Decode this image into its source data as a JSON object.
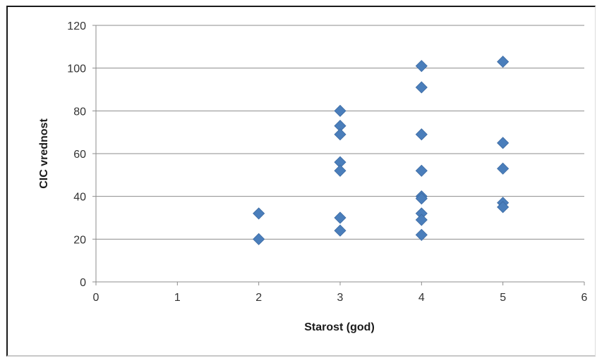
{
  "chart_data": {
    "type": "scatter",
    "title": "",
    "xlabel": "Starost (god)",
    "ylabel": "CIC vrednost",
    "xlim": [
      0,
      6
    ],
    "ylim": [
      0,
      120
    ],
    "x_ticks": [
      0,
      1,
      2,
      3,
      4,
      5,
      6
    ],
    "y_ticks": [
      0,
      20,
      40,
      60,
      80,
      100,
      120
    ],
    "grid": "horizontal",
    "legend": "none",
    "marker": "diamond",
    "marker_color": "#4a7ebb",
    "points": [
      {
        "x": 2,
        "y": 32
      },
      {
        "x": 2,
        "y": 20
      },
      {
        "x": 3,
        "y": 80
      },
      {
        "x": 3,
        "y": 73
      },
      {
        "x": 3,
        "y": 69
      },
      {
        "x": 3,
        "y": 56
      },
      {
        "x": 3,
        "y": 52
      },
      {
        "x": 3,
        "y": 30
      },
      {
        "x": 3,
        "y": 24
      },
      {
        "x": 4,
        "y": 101
      },
      {
        "x": 4,
        "y": 91
      },
      {
        "x": 4,
        "y": 69
      },
      {
        "x": 4,
        "y": 52
      },
      {
        "x": 4,
        "y": 40
      },
      {
        "x": 4,
        "y": 39
      },
      {
        "x": 4,
        "y": 32
      },
      {
        "x": 4,
        "y": 29
      },
      {
        "x": 4,
        "y": 22
      },
      {
        "x": 5,
        "y": 103
      },
      {
        "x": 5,
        "y": 65
      },
      {
        "x": 5,
        "y": 53
      },
      {
        "x": 5,
        "y": 37
      },
      {
        "x": 5,
        "y": 35
      }
    ]
  }
}
